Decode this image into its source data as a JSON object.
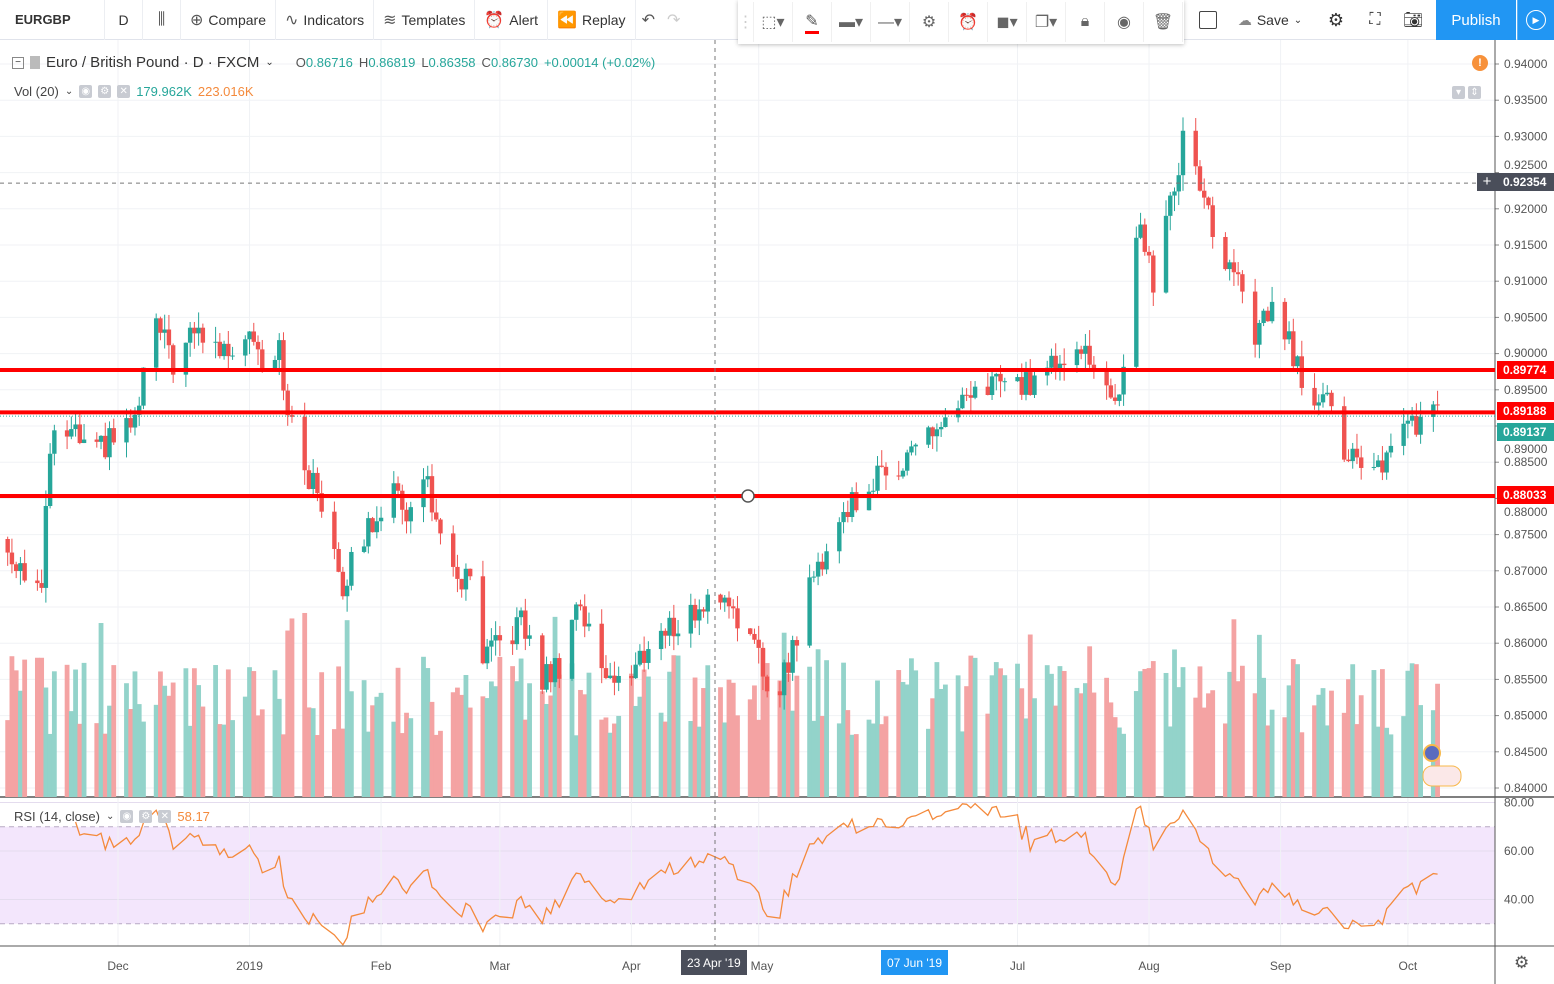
{
  "toolbar": {
    "symbol": "EURGBP",
    "interval": "D",
    "compare": "Compare",
    "indicators": "Indicators",
    "templates": "Templates",
    "alert": "Alert",
    "replay": "Replay",
    "save": "Save",
    "publish": "Publish"
  },
  "legend": {
    "title": "Euro / British Pound · D · FXCM",
    "o_label": "O",
    "o": "0.86716",
    "h_label": "H",
    "h": "0.86819",
    "l_label": "L",
    "l": "0.86358",
    "c_label": "C",
    "c": "0.86730",
    "change": "+0.00014 (+0.02%)"
  },
  "volume": {
    "label": "Vol (20)",
    "v1": "179.962K",
    "v2": "223.016K"
  },
  "rsi": {
    "label": "RSI (14, close)",
    "value": "58.17",
    "ticks": [
      "80.00",
      "60.00",
      "40.00"
    ]
  },
  "price_axis": {
    "ticks": [
      "0.94000",
      "0.93500",
      "0.93000",
      "0.92500",
      "0.92000",
      "0.91500",
      "0.91000",
      "0.90500",
      "0.90000",
      "0.89500",
      "0.89000",
      "0.88500",
      "0.88000",
      "0.87500",
      "0.87000",
      "0.86500",
      "0.86000",
      "0.85500",
      "0.85000",
      "0.84500",
      "0.84000"
    ],
    "crosshair": "0.92354",
    "current": "0.89137",
    "lines": [
      "0.89774",
      "0.89188",
      "0.88033"
    ]
  },
  "time_axis": {
    "ticks": [
      {
        "label": "Dec",
        "date": "2018-12-01"
      },
      {
        "label": "2019",
        "date": "2019-01-01"
      },
      {
        "label": "Feb",
        "date": "2019-02-01"
      },
      {
        "label": "Mar",
        "date": "2019-03-01"
      },
      {
        "label": "Apr",
        "date": "2019-04-01"
      },
      {
        "label": "May",
        "date": "2019-05-01"
      },
      {
        "label": "Jul",
        "date": "2019-07-01"
      },
      {
        "label": "Aug",
        "date": "2019-08-01"
      },
      {
        "label": "Sep",
        "date": "2019-09-01"
      },
      {
        "label": "Oct",
        "date": "2019-10-01"
      }
    ],
    "crosshair_label": "23 Apr '19",
    "selected_label": "07 Jun '19"
  },
  "colors": {
    "up": "#26a69a",
    "down": "#ef5350",
    "line": "#ff0000",
    "rsi": "#f48a3c",
    "rsi_band": "#f3e6fc",
    "accent": "#2196f3"
  },
  "chart_data": {
    "type": "candlestick",
    "symbol": "EURGBP",
    "ylim": [
      0.84,
      0.94
    ],
    "close_path": [
      [
        "2018-11-03",
        0.874
      ],
      [
        "2018-11-08",
        0.871
      ],
      [
        "2018-11-13",
        0.867
      ],
      [
        "2018-11-15",
        0.887
      ],
      [
        "2018-11-19",
        0.889
      ],
      [
        "2018-11-22",
        0.888
      ],
      [
        "2018-11-24",
        0.885
      ],
      [
        "2018-12-01",
        0.889
      ],
      [
        "2018-12-06",
        0.891
      ],
      [
        "2018-12-08",
        0.906
      ],
      [
        "2018-12-14",
        0.899
      ],
      [
        "2018-12-20",
        0.903
      ],
      [
        "2018-12-26",
        0.9
      ],
      [
        "2019-01-01",
        0.904
      ],
      [
        "2019-01-05",
        0.898
      ],
      [
        "2019-01-08",
        0.902
      ],
      [
        "2019-01-10",
        0.891
      ],
      [
        "2019-01-15",
        0.883
      ],
      [
        "2019-01-20",
        0.877
      ],
      [
        "2019-01-23",
        0.868
      ],
      [
        "2019-01-29",
        0.876
      ],
      [
        "2019-02-03",
        0.881
      ],
      [
        "2019-02-08",
        0.878
      ],
      [
        "2019-02-12",
        0.883
      ],
      [
        "2019-02-16",
        0.87
      ],
      [
        "2019-02-22",
        0.868
      ],
      [
        "2019-02-25",
        0.857
      ],
      [
        "2019-03-01",
        0.86
      ],
      [
        "2019-03-06",
        0.863
      ],
      [
        "2019-03-11",
        0.855
      ],
      [
        "2019-03-15",
        0.857
      ],
      [
        "2019-03-19",
        0.866
      ],
      [
        "2019-03-25",
        0.857
      ],
      [
        "2019-03-31",
        0.854
      ],
      [
        "2019-04-05",
        0.86
      ],
      [
        "2019-04-15",
        0.864
      ],
      [
        "2019-04-23",
        0.867
      ],
      [
        "2019-04-27",
        0.863
      ],
      [
        "2019-05-02",
        0.856
      ],
      [
        "2019-05-04",
        0.852
      ],
      [
        "2019-05-09",
        0.859
      ],
      [
        "2019-05-12",
        0.866
      ],
      [
        "2019-05-16",
        0.872
      ],
      [
        "2019-05-21",
        0.878
      ],
      [
        "2019-05-25",
        0.881
      ],
      [
        "2019-05-30",
        0.883
      ],
      [
        "2019-06-03",
        0.885
      ],
      [
        "2019-06-08",
        0.888
      ],
      [
        "2019-06-13",
        0.89
      ],
      [
        "2019-06-17",
        0.892
      ],
      [
        "2019-06-22",
        0.894
      ],
      [
        "2019-06-26",
        0.897
      ],
      [
        "2019-07-01",
        0.895
      ],
      [
        "2019-07-08",
        0.898
      ],
      [
        "2019-07-15",
        0.902
      ],
      [
        "2019-07-20",
        0.897
      ],
      [
        "2019-07-23",
        0.893
      ],
      [
        "2019-07-26",
        0.897
      ],
      [
        "2019-07-28",
        0.91
      ],
      [
        "2019-07-30",
        0.918
      ],
      [
        "2019-08-02",
        0.91
      ],
      [
        "2019-08-04",
        0.917
      ],
      [
        "2019-08-07",
        0.922
      ],
      [
        "2019-08-09",
        0.93
      ],
      [
        "2019-08-11",
        0.927
      ],
      [
        "2019-08-15",
        0.92
      ],
      [
        "2019-08-18",
        0.912
      ],
      [
        "2019-08-22",
        0.91
      ],
      [
        "2019-08-24",
        0.905
      ],
      [
        "2019-08-26",
        0.902
      ],
      [
        "2019-08-30",
        0.907
      ],
      [
        "2019-09-02",
        0.903
      ],
      [
        "2019-09-05",
        0.898
      ],
      [
        "2019-09-07",
        0.894
      ],
      [
        "2019-09-12",
        0.896
      ],
      [
        "2019-09-14",
        0.888
      ],
      [
        "2019-09-19",
        0.885
      ],
      [
        "2019-09-22",
        0.881
      ],
      [
        "2019-09-24",
        0.884
      ],
      [
        "2019-09-28",
        0.889
      ],
      [
        "2019-09-30",
        0.89
      ],
      [
        "2019-10-05",
        0.891
      ]
    ],
    "horizontal_lines": [
      0.89774,
      0.89188,
      0.88033
    ],
    "volume_range_k": [
      100,
      300
    ]
  }
}
